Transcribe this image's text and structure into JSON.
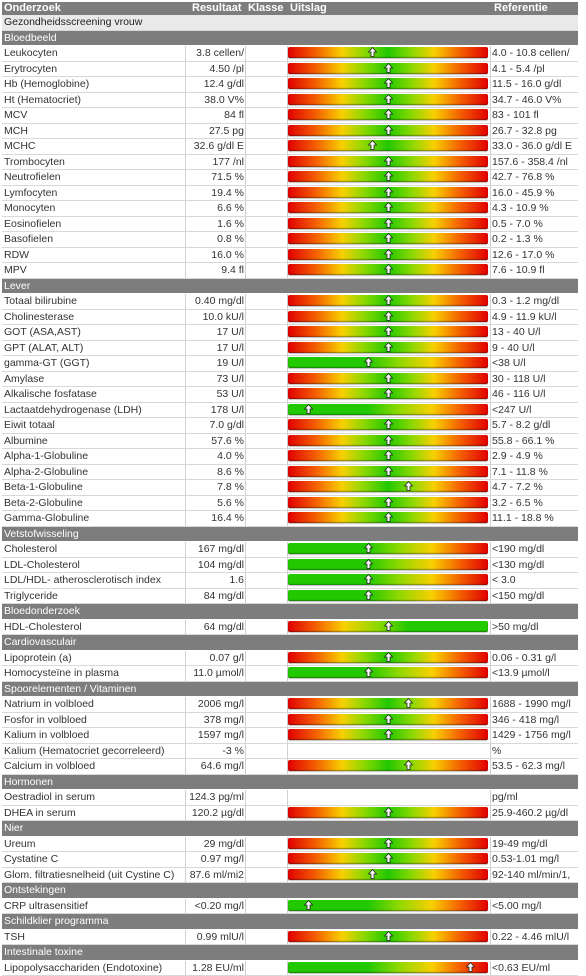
{
  "header": {
    "onderzoek": "Onderzoek",
    "resultaat": "Resultaat",
    "klasse": "Klasse",
    "uitslag": "Uitslag",
    "referentie": "Referentie"
  },
  "rows": [
    {
      "type": "title",
      "name": "Gezondheidsscreening vrouw"
    },
    {
      "type": "section",
      "name": "Bloedbeeld"
    },
    {
      "name": "Leukocyten",
      "result": "3.8 cellen/",
      "ref": "4.0 - 10.8 cellen/",
      "bar": "std",
      "level": 0.42
    },
    {
      "name": "Erytrocyten",
      "result": "4.50 /pl",
      "ref": "4.1 - 5.4 /pl",
      "bar": "std",
      "level": 0.5
    },
    {
      "name": "Hb (Hemoglobine)",
      "result": "12.4 g/dl",
      "ref": "11.5 - 16.0 g/dl",
      "bar": "std",
      "level": 0.5
    },
    {
      "name": "Ht (Hematocriet)",
      "result": "38.0 V%",
      "ref": "34.7 - 46.0 V%",
      "bar": "std",
      "level": 0.5
    },
    {
      "name": "MCV",
      "result": "84 fl",
      "ref": "83 - 101 fl",
      "bar": "std",
      "level": 0.5
    },
    {
      "name": "MCH",
      "result": "27.5 pg",
      "ref": "26.7 - 32.8 pg",
      "bar": "std",
      "level": 0.5
    },
    {
      "name": "MCHC",
      "result": "32.6 g/dl E",
      "ref": "33.0 - 36.0 g/dl E",
      "bar": "std",
      "level": 0.42
    },
    {
      "name": "Trombocyten",
      "result": "177 /nl",
      "ref": "157.6 - 358.4 /nl",
      "bar": "std",
      "level": 0.5
    },
    {
      "name": "Neutrofielen",
      "result": "71.5 %",
      "ref": "42.7 - 76.8 %",
      "bar": "std",
      "level": 0.5
    },
    {
      "name": "Lymfocyten",
      "result": "19.4 %",
      "ref": "16.0 - 45.9 %",
      "bar": "std",
      "level": 0.5
    },
    {
      "name": "Monocyten",
      "result": "6.6 %",
      "ref": "4.3 - 10.9 %",
      "bar": "std",
      "level": 0.5
    },
    {
      "name": "Eosinofielen",
      "result": "1.6 %",
      "ref": "0.5 - 7.0 %",
      "bar": "std",
      "level": 0.5
    },
    {
      "name": "Basofielen",
      "result": "0.8 %",
      "ref": "0.2 - 1.3 %",
      "bar": "std",
      "level": 0.5
    },
    {
      "name": "RDW",
      "result": "16.0 %",
      "ref": "12.6 - 17.0 %",
      "bar": "std",
      "level": 0.5
    },
    {
      "name": "MPV",
      "result": "9.4 fl",
      "ref": "7.6 - 10.9 fl",
      "bar": "std",
      "level": 0.5
    },
    {
      "type": "section",
      "name": "Lever"
    },
    {
      "name": "Totaal bilirubine",
      "result": "0.40 mg/dl",
      "ref": "0.3 - 1.2 mg/dl",
      "bar": "std",
      "level": 0.5
    },
    {
      "name": "Cholinesterase",
      "result": "10.0 kU/l",
      "ref": "4.9 - 11.9 kU/l",
      "bar": "std",
      "level": 0.5
    },
    {
      "name": "GOT (ASA,AST)",
      "result": "17 U/l",
      "ref": "13 - 40 U/l",
      "bar": "std",
      "level": 0.5
    },
    {
      "name": "GPT (ALAT, ALT)",
      "result": "17 U/l",
      "ref": "9 - 40 U/l",
      "bar": "std",
      "level": 0.5
    },
    {
      "name": "gamma-GT (GGT)",
      "result": "19 U/l",
      "ref": "<38 U/l",
      "bar": "low",
      "level": 0.4
    },
    {
      "name": "Amylase",
      "result": "73 U/l",
      "ref": "30 - 118 U/l",
      "bar": "std",
      "level": 0.5
    },
    {
      "name": "Alkalische fosfatase",
      "result": "53 U/l",
      "ref": "46 - 116 U/l",
      "bar": "std",
      "level": 0.5
    },
    {
      "name": "Lactaatdehydrogenase (LDH)",
      "result": "178 U/l",
      "ref": "<247 U/l",
      "bar": "low",
      "level": 0.1
    },
    {
      "name": "Eiwit totaal",
      "result": "7.0 g/dl",
      "ref": "5.7 - 8.2 g/dl",
      "bar": "std",
      "level": 0.5
    },
    {
      "name": "Albumine",
      "result": "57.6 %",
      "ref": "55.8 - 66.1 %",
      "bar": "std",
      "level": 0.5
    },
    {
      "name": "Alpha-1-Globuline",
      "result": "4.0 %",
      "ref": "2.9 - 4.9 %",
      "bar": "std",
      "level": 0.5
    },
    {
      "name": "Alpha-2-Globuline",
      "result": "8.6 %",
      "ref": "7.1 - 11.8 %",
      "bar": "std",
      "level": 0.5
    },
    {
      "name": "Beta-1-Globuline",
      "result": "7.8 %",
      "ref": "4.7 - 7.2 %",
      "bar": "std",
      "level": 0.6
    },
    {
      "name": "Beta-2-Globuline",
      "result": "5.6 %",
      "ref": "3.2 - 6.5 %",
      "bar": "std",
      "level": 0.5
    },
    {
      "name": "Gamma-Globuline",
      "result": "16.4 %",
      "ref": "11.1 - 18.8 %",
      "bar": "std",
      "level": 0.5
    },
    {
      "type": "section",
      "name": "Vetstofwisseling"
    },
    {
      "name": "Cholesterol",
      "result": "167 mg/dl",
      "ref": "<190 mg/dl",
      "bar": "low",
      "level": 0.4
    },
    {
      "name": "LDL-Cholesterol",
      "result": "104 mg/dl",
      "ref": "<130 mg/dl",
      "bar": "low",
      "level": 0.4
    },
    {
      "name": "LDL/HDL- atherosclerotisch index",
      "result": "1.6",
      "ref": "< 3.0",
      "bar": "low",
      "level": 0.4
    },
    {
      "name": "Triglyceride",
      "result": "84 mg/dl",
      "ref": "<150 mg/dl",
      "bar": "low",
      "level": 0.4
    },
    {
      "type": "section",
      "name": "Bloedonderzoek"
    },
    {
      "name": "HDL-Cholesterol",
      "result": "64 mg/dl",
      "ref": ">50 mg/dl",
      "bar": "high",
      "level": 0.5
    },
    {
      "type": "section",
      "name": "Cardiovasculair"
    },
    {
      "name": "Lipoprotein (a)",
      "result": "0.07 g/l",
      "ref": "0.06 - 0.31 g/l",
      "bar": "std",
      "level": 0.5
    },
    {
      "name": "Homocysteïne in plasma",
      "result": "11.0 µmol/l",
      "ref": "<13.9 µmol/l",
      "bar": "low",
      "level": 0.4
    },
    {
      "type": "section",
      "name": "Spoorelementen / Vitaminen"
    },
    {
      "name": "Natrium in volbloed",
      "result": "2006 mg/l",
      "ref": "1688 - 1990 mg/l",
      "bar": "std",
      "level": 0.6
    },
    {
      "name": "Fosfor in volbloed",
      "result": "378 mg/l",
      "ref": "346 - 418 mg/l",
      "bar": "std",
      "level": 0.5
    },
    {
      "name": "Kalium in volbloed",
      "result": "1597 mg/l",
      "ref": "1429 - 1756 mg/l",
      "bar": "std",
      "level": 0.5
    },
    {
      "name": "Kalium (Hematocriet gecorreleerd)",
      "result": "-3 %",
      "ref": "%",
      "bar": "none"
    },
    {
      "name": "Calcium in volbloed",
      "result": "64.6 mg/l",
      "ref": "53.5 - 62.3 mg/l",
      "bar": "std",
      "level": 0.6
    },
    {
      "type": "section",
      "name": "Hormonen"
    },
    {
      "name": "Oestradiol in serum",
      "result": "124.3 pg/ml",
      "ref": "pg/ml",
      "bar": "none"
    },
    {
      "name": "DHEA in serum",
      "result": "120.2 µg/dl",
      "ref": "25.9-460.2 µg/dl",
      "bar": "std",
      "level": 0.5
    },
    {
      "type": "section",
      "name": "Nier"
    },
    {
      "name": "Ureum",
      "result": "29 mg/dl",
      "ref": "19-49 mg/dl",
      "bar": "std",
      "level": 0.5
    },
    {
      "name": "Cystatine C",
      "result": "0.97 mg/l",
      "ref": "0.53-1.01 mg/l",
      "bar": "std",
      "level": 0.5
    },
    {
      "name": "Glom. filtratiesnelheid (uit Cystine C)",
      "result": "87.6 ml/mi2",
      "ref": "92-140 ml/min/1,",
      "bar": "std",
      "level": 0.42
    },
    {
      "type": "section",
      "name": "Ontstekingen"
    },
    {
      "name": "CRP ultrasensitief",
      "result": "<0.20 mg/l",
      "ref": "<5.00 mg/l",
      "bar": "low",
      "level": 0.1
    },
    {
      "type": "section",
      "name": "Schildklier programma"
    },
    {
      "name": "TSH",
      "result": "0.99 mlU/l",
      "ref": "0.22 - 4.46 mlU/l",
      "bar": "std",
      "level": 0.5
    },
    {
      "type": "section",
      "name": "Intestinale toxine"
    },
    {
      "name": "Lipopolysacchariden (Endotoxine)",
      "result": "1.28 EU/ml",
      "ref": "<0.63 EU/ml",
      "bar": "low",
      "level": 0.91
    }
  ]
}
